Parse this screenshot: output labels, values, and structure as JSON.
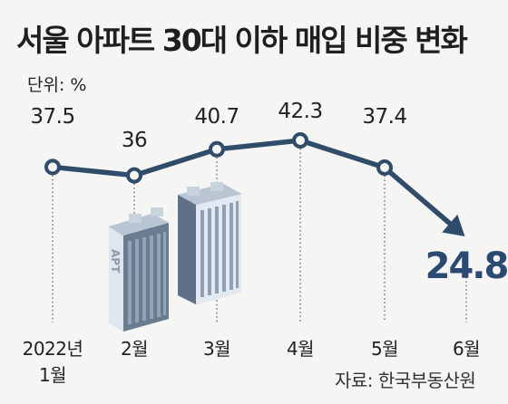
{
  "title": "서울 아파트 30대 이하 매입 비중 변화",
  "unit_label": "단위: %",
  "source": "자료: 한국부동산원",
  "colors": {
    "line": "#2f4c6b",
    "highlight": "#2a4a72",
    "background": "#f5f5f3",
    "building_dark": "#6e7f93",
    "building_light": "#dfe6ee"
  },
  "illustration": "apartment-buildings-icon",
  "chart_data": {
    "type": "line",
    "title": "서울 아파트 30대 이하 매입 비중 변화",
    "ylabel": "단위: %",
    "categories": [
      "2022년\n1월",
      "2월",
      "3월",
      "4월",
      "5월",
      "6월"
    ],
    "category_lines": [
      [
        "2022년",
        "1월"
      ],
      [
        "2월"
      ],
      [
        "3월"
      ],
      [
        "4월"
      ],
      [
        "5월"
      ],
      [
        "6월"
      ]
    ],
    "values": [
      37.5,
      36,
      40.7,
      42.3,
      37.4,
      24.8
    ],
    "labels": [
      "37.5",
      "36",
      "40.7",
      "42.3",
      "37.4",
      "24.8"
    ],
    "ylim": [
      20,
      45
    ],
    "grid": false,
    "last_point_style": "arrow"
  }
}
